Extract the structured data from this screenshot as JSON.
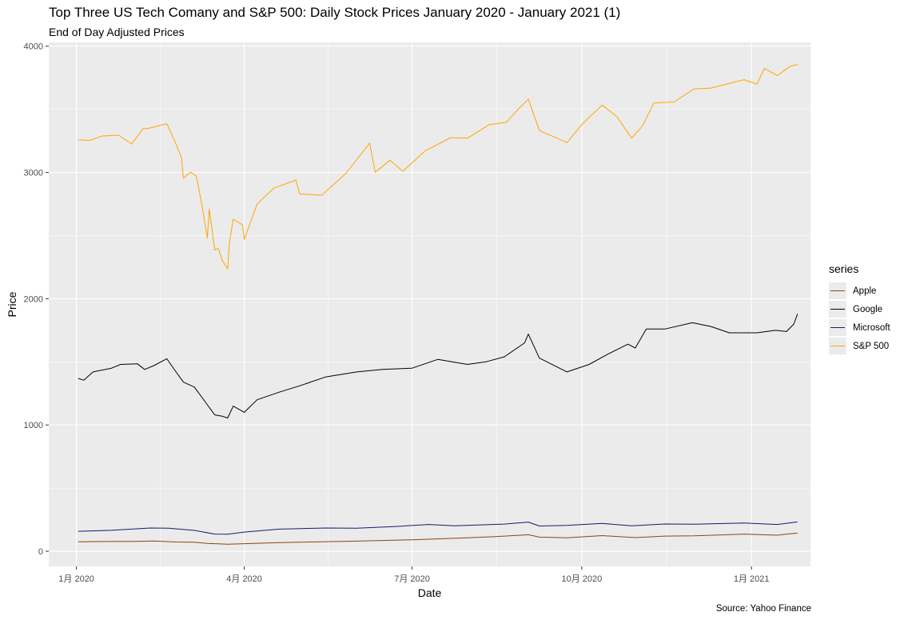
{
  "chart_data": {
    "type": "line",
    "title": "Top Three US Tech Comany and S&P 500: Daily Stock Prices January 2020 - January 2021 (1)",
    "subtitle": "End of Day Adjusted Prices",
    "xlabel": "Date",
    "ylabel": "Price",
    "caption": "Source: Yahoo Finance",
    "x_ticks": [
      "1月 2020",
      "4月 2020",
      "7月 2020",
      "10月 2020",
      "1月 2021"
    ],
    "x_tick_dates": [
      "2020-01-01",
      "2020-04-01",
      "2020-07-01",
      "2020-10-01",
      "2021-01-01"
    ],
    "y_ticks": [
      "0",
      "1000",
      "2000",
      "3000",
      "4000"
    ],
    "xlim": [
      "2019-12-17",
      "2021-02-02"
    ],
    "ylim": [
      -120,
      4030
    ],
    "grid": true,
    "legend": {
      "title": "series",
      "position": "right"
    },
    "series": [
      {
        "name": "Apple",
        "color": "#8B4513",
        "points": [
          [
            "2020-01-02",
            75
          ],
          [
            "2020-01-15",
            77
          ],
          [
            "2020-02-01",
            78
          ],
          [
            "2020-02-12",
            81
          ],
          [
            "2020-02-24",
            73
          ],
          [
            "2020-03-05",
            72
          ],
          [
            "2020-03-12",
            62
          ],
          [
            "2020-03-23",
            56
          ],
          [
            "2020-04-01",
            60
          ],
          [
            "2020-04-20",
            68
          ],
          [
            "2020-05-01",
            72
          ],
          [
            "2020-06-01",
            80
          ],
          [
            "2020-07-01",
            91
          ],
          [
            "2020-07-31",
            106
          ],
          [
            "2020-08-14",
            115
          ],
          [
            "2020-08-31",
            129
          ],
          [
            "2020-09-02",
            131
          ],
          [
            "2020-09-08",
            112
          ],
          [
            "2020-09-23",
            107
          ],
          [
            "2020-10-12",
            124
          ],
          [
            "2020-10-30",
            108
          ],
          [
            "2020-11-15",
            120
          ],
          [
            "2020-12-01",
            122
          ],
          [
            "2020-12-28",
            136
          ],
          [
            "2021-01-15",
            127
          ],
          [
            "2021-01-22",
            139
          ],
          [
            "2021-01-26",
            143
          ]
        ]
      },
      {
        "name": "Google",
        "color": "#000000",
        "points": [
          [
            "2020-01-02",
            1368
          ],
          [
            "2020-01-05",
            1355
          ],
          [
            "2020-01-10",
            1420
          ],
          [
            "2020-01-20",
            1450
          ],
          [
            "2020-01-25",
            1480
          ],
          [
            "2020-02-03",
            1485
          ],
          [
            "2020-02-07",
            1440
          ],
          [
            "2020-02-12",
            1470
          ],
          [
            "2020-02-19",
            1525
          ],
          [
            "2020-02-24",
            1420
          ],
          [
            "2020-02-28",
            1340
          ],
          [
            "2020-03-05",
            1300
          ],
          [
            "2020-03-12",
            1160
          ],
          [
            "2020-03-16",
            1080
          ],
          [
            "2020-03-20",
            1070
          ],
          [
            "2020-03-23",
            1055
          ],
          [
            "2020-03-26",
            1150
          ],
          [
            "2020-04-01",
            1100
          ],
          [
            "2020-04-08",
            1200
          ],
          [
            "2020-04-20",
            1260
          ],
          [
            "2020-05-01",
            1310
          ],
          [
            "2020-05-15",
            1380
          ],
          [
            "2020-06-01",
            1420
          ],
          [
            "2020-06-15",
            1440
          ],
          [
            "2020-07-01",
            1450
          ],
          [
            "2020-07-15",
            1520
          ],
          [
            "2020-07-31",
            1480
          ],
          [
            "2020-08-10",
            1500
          ],
          [
            "2020-08-20",
            1540
          ],
          [
            "2020-08-31",
            1650
          ],
          [
            "2020-09-02",
            1720
          ],
          [
            "2020-09-08",
            1530
          ],
          [
            "2020-09-23",
            1420
          ],
          [
            "2020-10-05",
            1480
          ],
          [
            "2020-10-15",
            1560
          ],
          [
            "2020-10-26",
            1640
          ],
          [
            "2020-10-30",
            1610
          ],
          [
            "2020-11-05",
            1760
          ],
          [
            "2020-11-15",
            1760
          ],
          [
            "2020-11-30",
            1810
          ],
          [
            "2020-12-10",
            1780
          ],
          [
            "2020-12-20",
            1730
          ],
          [
            "2021-01-04",
            1730
          ],
          [
            "2021-01-14",
            1750
          ],
          [
            "2021-01-20",
            1740
          ],
          [
            "2021-01-24",
            1800
          ],
          [
            "2021-01-26",
            1880
          ]
        ]
      },
      {
        "name": "Microsoft",
        "color": "#191970",
        "points": [
          [
            "2020-01-02",
            158
          ],
          [
            "2020-01-20",
            166
          ],
          [
            "2020-02-10",
            184
          ],
          [
            "2020-02-20",
            183
          ],
          [
            "2020-03-05",
            165
          ],
          [
            "2020-03-16",
            136
          ],
          [
            "2020-03-23",
            135
          ],
          [
            "2020-04-01",
            152
          ],
          [
            "2020-04-20",
            175
          ],
          [
            "2020-05-15",
            184
          ],
          [
            "2020-06-01",
            182
          ],
          [
            "2020-06-22",
            196
          ],
          [
            "2020-07-10",
            212
          ],
          [
            "2020-07-24",
            202
          ],
          [
            "2020-08-20",
            215
          ],
          [
            "2020-09-02",
            231
          ],
          [
            "2020-09-08",
            200
          ],
          [
            "2020-09-23",
            205
          ],
          [
            "2020-10-12",
            220
          ],
          [
            "2020-10-28",
            202
          ],
          [
            "2020-11-15",
            216
          ],
          [
            "2020-12-01",
            214
          ],
          [
            "2020-12-28",
            224
          ],
          [
            "2021-01-15",
            212
          ],
          [
            "2021-01-26",
            232
          ]
        ]
      },
      {
        "name": "S&P 500",
        "color": "#FFA500",
        "points": [
          [
            "2020-01-02",
            3258
          ],
          [
            "2020-01-08",
            3253
          ],
          [
            "2020-01-15",
            3289
          ],
          [
            "2020-01-24",
            3295
          ],
          [
            "2020-01-31",
            3225
          ],
          [
            "2020-02-06",
            3345
          ],
          [
            "2020-02-10",
            3352
          ],
          [
            "2020-02-19",
            3386
          ],
          [
            "2020-02-24",
            3225
          ],
          [
            "2020-02-27",
            3116
          ],
          [
            "2020-02-28",
            2954
          ],
          [
            "2020-03-03",
            3003
          ],
          [
            "2020-03-06",
            2972
          ],
          [
            "2020-03-09",
            2746
          ],
          [
            "2020-03-12",
            2480
          ],
          [
            "2020-03-13",
            2711
          ],
          [
            "2020-03-16",
            2386
          ],
          [
            "2020-03-18",
            2398
          ],
          [
            "2020-03-20",
            2305
          ],
          [
            "2020-03-23",
            2237
          ],
          [
            "2020-03-24",
            2447
          ],
          [
            "2020-03-26",
            2630
          ],
          [
            "2020-03-31",
            2585
          ],
          [
            "2020-04-01",
            2470
          ],
          [
            "2020-04-08",
            2750
          ],
          [
            "2020-04-17",
            2875
          ],
          [
            "2020-04-29",
            2940
          ],
          [
            "2020-05-01",
            2830
          ],
          [
            "2020-05-13",
            2820
          ],
          [
            "2020-05-26",
            2991
          ],
          [
            "2020-06-08",
            3232
          ],
          [
            "2020-06-11",
            3002
          ],
          [
            "2020-06-19",
            3097
          ],
          [
            "2020-06-26",
            3009
          ],
          [
            "2020-07-08",
            3170
          ],
          [
            "2020-07-22",
            3276
          ],
          [
            "2020-07-31",
            3271
          ],
          [
            "2020-08-12",
            3380
          ],
          [
            "2020-08-21",
            3397
          ],
          [
            "2020-08-28",
            3508
          ],
          [
            "2020-09-02",
            3580
          ],
          [
            "2020-09-08",
            3332
          ],
          [
            "2020-09-23",
            3237
          ],
          [
            "2020-10-01",
            3380
          ],
          [
            "2020-10-12",
            3534
          ],
          [
            "2020-10-20",
            3443
          ],
          [
            "2020-10-28",
            3271
          ],
          [
            "2020-11-03",
            3369
          ],
          [
            "2020-11-09",
            3550
          ],
          [
            "2020-11-20",
            3558
          ],
          [
            "2020-12-01",
            3662
          ],
          [
            "2020-12-10",
            3668
          ],
          [
            "2020-12-28",
            3735
          ],
          [
            "2021-01-04",
            3700
          ],
          [
            "2021-01-08",
            3824
          ],
          [
            "2021-01-15",
            3768
          ],
          [
            "2021-01-22",
            3841
          ],
          [
            "2021-01-26",
            3855
          ]
        ]
      }
    ]
  }
}
